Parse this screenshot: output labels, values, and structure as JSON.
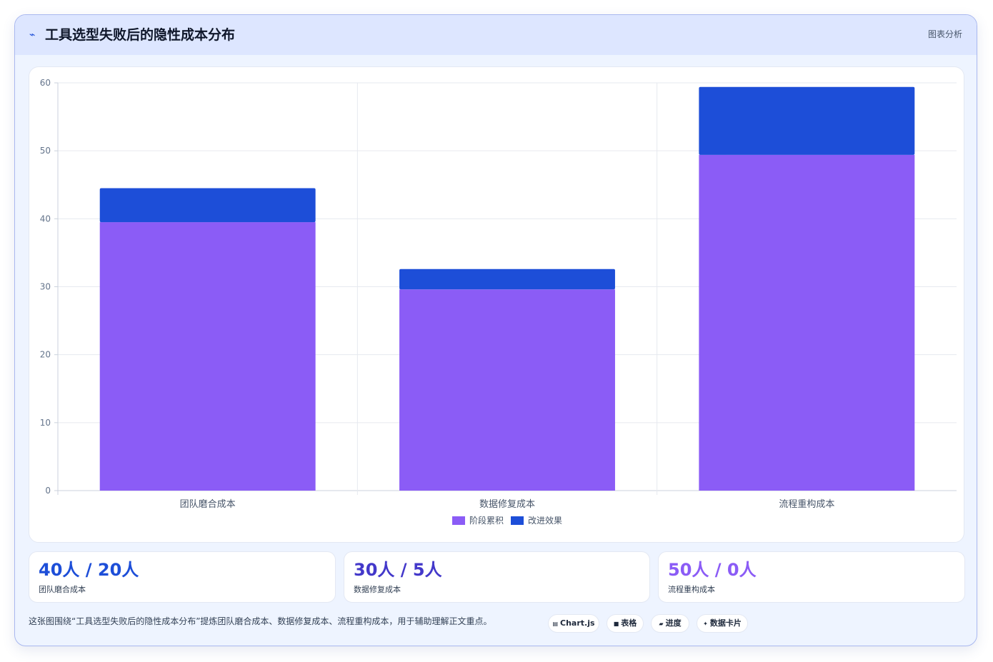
{
  "header": {
    "icon": "chart-icon",
    "title": "工具选型失败后的隐性成本分布",
    "right_label": "图表分析"
  },
  "chart_data": {
    "type": "bar",
    "stacked": true,
    "categories": [
      "团队磨合成本",
      "数据修复成本",
      "流程重构成本"
    ],
    "series": [
      {
        "name": "阶段累积",
        "values": [
          39.5,
          29.6,
          49.4
        ],
        "color": "#8b5cf6"
      },
      {
        "name": "改进效果",
        "values": [
          5.0,
          3.0,
          10.0
        ],
        "color": "#1d4ed8"
      }
    ],
    "ylim": [
      0,
      60
    ],
    "yticks": [
      0,
      10,
      20,
      30,
      40,
      50,
      60
    ],
    "grid": true,
    "legend": "bottom"
  },
  "stats": [
    {
      "value": "40人 / 20人",
      "label": "团队磨合成本",
      "color": "#1d4ed8"
    },
    {
      "value": "30人 / 5人",
      "label": "数据修复成本",
      "color": "#4338ca"
    },
    {
      "value": "50人 / 0人",
      "label": "流程重构成本",
      "color": "#8b5cf6"
    }
  ],
  "footnote": "这张图围绕“工具选型失败后的隐性成本分布”提炼团队磨合成本、数据修复成本、流程重构成本，用于辅助理解正文重点。",
  "chips": [
    {
      "icon": "chart-icon",
      "glyph": "▤",
      "label": "Chart.js"
    },
    {
      "icon": "table-icon",
      "glyph": "■",
      "label": "表格"
    },
    {
      "icon": "progress-icon",
      "glyph": "▰",
      "label": "进度"
    },
    {
      "icon": "sparkle-icon",
      "glyph": "✦",
      "label": "数据卡片"
    }
  ]
}
